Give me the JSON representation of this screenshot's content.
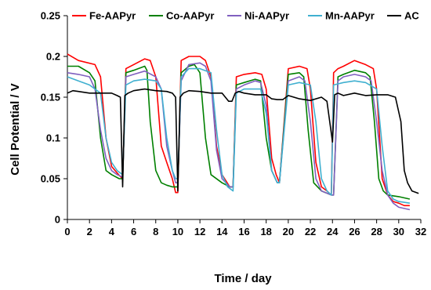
{
  "chart_data": {
    "type": "line",
    "xlabel": "Time / day",
    "ylabel": "Cell Potential / V",
    "xlim": [
      0,
      32
    ],
    "ylim": [
      0,
      0.25
    ],
    "xticks": [
      0,
      2,
      4,
      6,
      8,
      10,
      12,
      14,
      16,
      18,
      20,
      22,
      24,
      26,
      28,
      30,
      32
    ],
    "yticks": [
      0,
      0.05,
      0.1,
      0.15,
      0.2,
      0.25
    ],
    "xtick_labels": [
      "0",
      "2",
      "4",
      "6",
      "8",
      "10",
      "12",
      "14",
      "16",
      "18",
      "20",
      "22",
      "24",
      "26",
      "28",
      "30",
      "32"
    ],
    "ytick_labels": [
      "0",
      "0.05",
      "0.1",
      "0.15",
      "0.2",
      "0.25"
    ],
    "grid": false,
    "legend_position": "top",
    "series": [
      {
        "name": "Fe-AAPyr",
        "color": "#ff0000",
        "x": [
          0,
          1,
          2.5,
          3,
          3.5,
          4,
          4.7,
          5.0,
          5.3,
          6,
          7,
          7.5,
          8,
          8.5,
          9,
          9.5,
          9.8,
          10.0,
          10.3,
          11,
          12,
          12.5,
          13,
          13.5,
          14,
          14.7,
          15.0,
          15.3,
          16,
          17,
          17.6,
          18,
          18.5,
          18.9,
          19.2,
          20,
          21,
          21.7,
          22,
          22.5,
          23,
          23.5,
          23.9,
          24.1,
          24.5,
          25,
          26,
          27,
          27.7,
          28,
          28.5,
          29,
          29.5,
          30,
          30.5,
          31
        ],
        "values": [
          0.203,
          0.195,
          0.19,
          0.175,
          0.1,
          0.065,
          0.054,
          0.05,
          0.185,
          0.19,
          0.197,
          0.195,
          0.175,
          0.09,
          0.07,
          0.05,
          0.033,
          0.033,
          0.195,
          0.2,
          0.2,
          0.195,
          0.175,
          0.09,
          0.055,
          0.04,
          0.04,
          0.175,
          0.178,
          0.18,
          0.178,
          0.16,
          0.075,
          0.055,
          0.045,
          0.185,
          0.188,
          0.185,
          0.16,
          0.07,
          0.04,
          0.035,
          0.03,
          0.18,
          0.185,
          0.188,
          0.195,
          0.19,
          0.185,
          0.16,
          0.05,
          0.03,
          0.022,
          0.02,
          0.017,
          0.017
        ]
      },
      {
        "name": "Co-AAPyr",
        "color": "#008000",
        "x": [
          0,
          1,
          2,
          2.5,
          3,
          3.5,
          4,
          4.7,
          5.0,
          5.3,
          6,
          7,
          7.2,
          7.5,
          8,
          8.5,
          9,
          9.5,
          9.8,
          10.0,
          10.3,
          11,
          11.5,
          12,
          12.5,
          13,
          14,
          14.7,
          15.0,
          15.3,
          16,
          17,
          17.5,
          18,
          18.5,
          19,
          19.2,
          20,
          21,
          21.4,
          21.8,
          22.3,
          23,
          23.9,
          24.1,
          24.5,
          25,
          26,
          27,
          27.4,
          27.8,
          28.2,
          28.6,
          29,
          30,
          31
        ],
        "values": [
          0.188,
          0.188,
          0.18,
          0.17,
          0.1,
          0.06,
          0.055,
          0.05,
          0.05,
          0.18,
          0.183,
          0.188,
          0.183,
          0.12,
          0.06,
          0.045,
          0.042,
          0.04,
          0.04,
          0.04,
          0.18,
          0.188,
          0.19,
          0.18,
          0.1,
          0.055,
          0.045,
          0.04,
          0.04,
          0.165,
          0.168,
          0.172,
          0.17,
          0.1,
          0.06,
          0.045,
          0.045,
          0.178,
          0.18,
          0.175,
          0.11,
          0.045,
          0.035,
          0.03,
          0.03,
          0.175,
          0.178,
          0.183,
          0.18,
          0.175,
          0.12,
          0.05,
          0.035,
          0.03,
          0.028,
          0.025
        ]
      },
      {
        "name": "Ni-AAPyr",
        "color": "#8060c0",
        "x": [
          0,
          1,
          2,
          2.5,
          3,
          3.5,
          4,
          4.5,
          5.0,
          5.3,
          6,
          7,
          8,
          8.5,
          9,
          9.5,
          9.8,
          10.0,
          10.3,
          11,
          12,
          12.5,
          13,
          13.5,
          14,
          14.7,
          15.0,
          15.3,
          16,
          17,
          17.5,
          18,
          18.5,
          19,
          19.2,
          20,
          21,
          21.5,
          22,
          22.5,
          23,
          23.9,
          24.1,
          24.5,
          25,
          26,
          27,
          27.5,
          28,
          28.5,
          29,
          29.5,
          30,
          31
        ],
        "values": [
          0.18,
          0.178,
          0.175,
          0.16,
          0.11,
          0.075,
          0.06,
          0.055,
          0.052,
          0.175,
          0.178,
          0.182,
          0.175,
          0.16,
          0.09,
          0.06,
          0.045,
          0.045,
          0.17,
          0.19,
          0.192,
          0.188,
          0.17,
          0.085,
          0.05,
          0.04,
          0.04,
          0.16,
          0.165,
          0.17,
          0.168,
          0.14,
          0.06,
          0.045,
          0.045,
          0.17,
          0.175,
          0.17,
          0.12,
          0.05,
          0.035,
          0.03,
          0.03,
          0.17,
          0.175,
          0.178,
          0.175,
          0.17,
          0.12,
          0.06,
          0.03,
          0.02,
          0.015,
          0.012
        ]
      },
      {
        "name": "Mn-AAPyr",
        "color": "#40b0d0",
        "x": [
          0,
          1,
          2,
          3,
          3.5,
          4,
          4.5,
          5.0,
          5.3,
          6,
          7,
          8,
          8.5,
          9,
          9.5,
          9.8,
          10.0,
          10.3,
          11,
          12,
          13,
          13.5,
          14,
          14.5,
          15.0,
          15.3,
          16,
          17,
          17.5,
          18,
          18.5,
          19,
          19.2,
          20,
          21,
          22,
          22.5,
          23,
          23.5,
          23.9,
          24.1,
          25,
          26,
          27,
          28,
          28.5,
          29,
          29.5,
          30,
          31
        ],
        "values": [
          0.175,
          0.17,
          0.165,
          0.155,
          0.1,
          0.07,
          0.06,
          0.055,
          0.165,
          0.17,
          0.172,
          0.17,
          0.16,
          0.1,
          0.06,
          0.05,
          0.05,
          0.175,
          0.185,
          0.185,
          0.18,
          0.11,
          0.055,
          0.04,
          0.035,
          0.155,
          0.16,
          0.16,
          0.16,
          0.13,
          0.06,
          0.045,
          0.045,
          0.165,
          0.168,
          0.165,
          0.12,
          0.05,
          0.035,
          0.03,
          0.165,
          0.168,
          0.17,
          0.168,
          0.16,
          0.09,
          0.035,
          0.025,
          0.022,
          0.02
        ]
      },
      {
        "name": "AC",
        "color": "#000000",
        "x": [
          0,
          0.5,
          1,
          2,
          3,
          4,
          4.5,
          4.8,
          5.0,
          5.2,
          5.5,
          6,
          7,
          8,
          9,
          9.5,
          9.8,
          10.0,
          10.2,
          10.5,
          11,
          12,
          13,
          14,
          14.6,
          14.9,
          15.2,
          15.5,
          16,
          17,
          18,
          18.5,
          19,
          19.5,
          20,
          21,
          22,
          23,
          23.5,
          24.0,
          24.2,
          24.5,
          25,
          26,
          27,
          28,
          29,
          29.7,
          30.2,
          30.5,
          30.8,
          31.2,
          31.8
        ],
        "values": [
          0.155,
          0.158,
          0.157,
          0.155,
          0.155,
          0.155,
          0.152,
          0.15,
          0.04,
          0.152,
          0.155,
          0.158,
          0.16,
          0.158,
          0.157,
          0.155,
          0.15,
          0.035,
          0.15,
          0.155,
          0.158,
          0.157,
          0.155,
          0.155,
          0.145,
          0.145,
          0.155,
          0.157,
          0.155,
          0.153,
          0.153,
          0.148,
          0.147,
          0.147,
          0.152,
          0.148,
          0.146,
          0.15,
          0.145,
          0.095,
          0.153,
          0.155,
          0.152,
          0.155,
          0.152,
          0.153,
          0.153,
          0.15,
          0.12,
          0.06,
          0.045,
          0.035,
          0.032
        ]
      }
    ]
  }
}
